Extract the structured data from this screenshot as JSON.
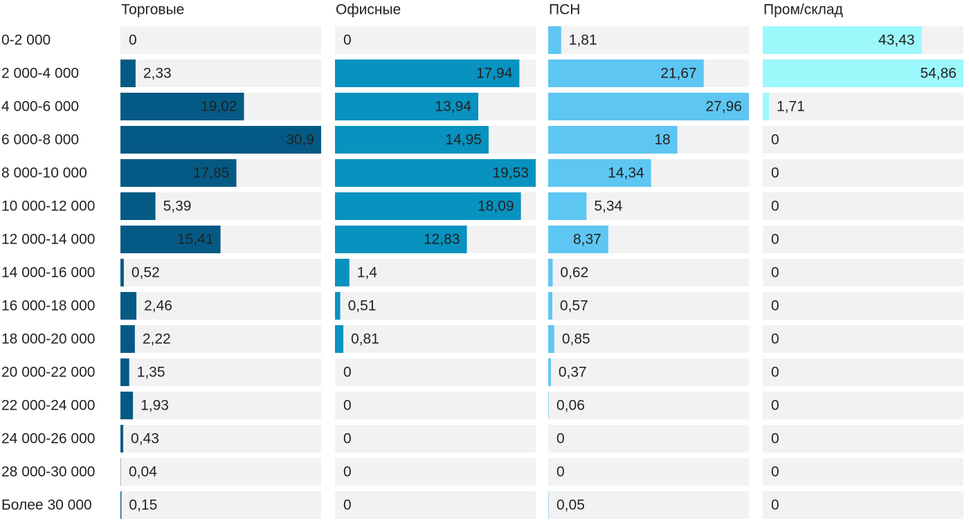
{
  "chart_data": {
    "type": "bar",
    "categories": [
      "0-2 000",
      "2 000-4 000",
      "4 000-6 000",
      "6 000-8 000",
      "8 000-10 000",
      "10 000-12 000",
      "12 000-14 000",
      "14 000-16 000",
      "16 000-18 000",
      "18 000-20 000",
      "20 000-22 000",
      "22 000-24 000",
      "24 000-26 000",
      "28 000-30 000",
      "Более 30 000"
    ],
    "series": [
      {
        "name": "Торговые",
        "color": "#045a84",
        "values": [
          0,
          2.33,
          19.02,
          30.9,
          17.85,
          5.39,
          15.41,
          0.52,
          2.46,
          2.22,
          1.35,
          1.93,
          0.43,
          0.04,
          0.15
        ],
        "value_labels": [
          "0",
          "2,33",
          "19,02",
          "30,9",
          "17,85",
          "5,39",
          "15,41",
          "0,52",
          "2,46",
          "2,22",
          "1,35",
          "1,93",
          "0,43",
          "0,04",
          "0,15"
        ]
      },
      {
        "name": "Офисные",
        "color": "#0892bf",
        "values": [
          0,
          17.94,
          13.94,
          14.95,
          19.53,
          18.09,
          12.83,
          1.4,
          0.51,
          0.81,
          0,
          0,
          0,
          0,
          0
        ],
        "value_labels": [
          "0",
          "17,94",
          "13,94",
          "14,95",
          "19,53",
          "18,09",
          "12,83",
          "1,4",
          "0,51",
          "0,81",
          "0",
          "0",
          "0",
          "0",
          "0"
        ]
      },
      {
        "name": "ПСН",
        "color": "#5ec6f2",
        "values": [
          1.81,
          21.67,
          27.96,
          18,
          14.34,
          5.34,
          8.37,
          0.62,
          0.57,
          0.85,
          0.37,
          0.06,
          0,
          0,
          0.05
        ],
        "value_labels": [
          "1,81",
          "21,67",
          "27,96",
          "18",
          "14,34",
          "5,34",
          "8,37",
          "0,62",
          "0,57",
          "0,85",
          "0,37",
          "0,06",
          "0",
          "0",
          "0,05"
        ]
      },
      {
        "name": "Пром/склад",
        "color": "#9cf8fb",
        "values": [
          43.43,
          54.86,
          1.71,
          0,
          0,
          0,
          0,
          0,
          0,
          0,
          0,
          0,
          0,
          0,
          0
        ],
        "value_labels": [
          "43,43",
          "54,86",
          "1,71",
          "0",
          "0",
          "0",
          "0",
          "0",
          "0",
          "0",
          "0",
          "0",
          "0",
          "0",
          "0"
        ]
      }
    ]
  }
}
